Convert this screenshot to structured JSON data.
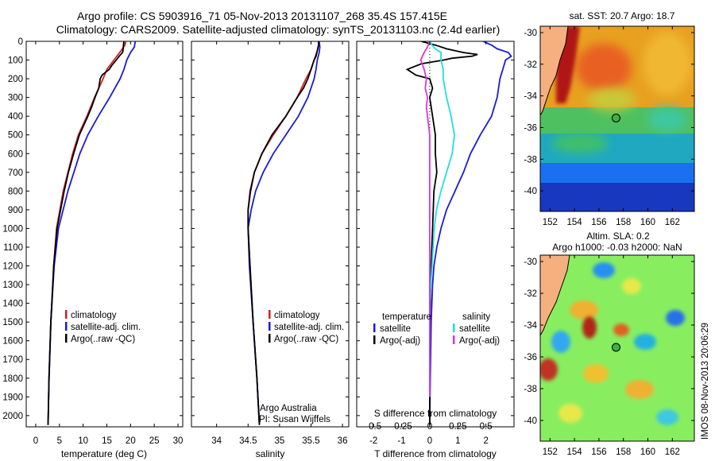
{
  "header": {
    "line1": "Argo profile: CS 5903916_71 05-Nov-2013 20131107_268 35.4S 157.415E",
    "line2": "Climatology: CARS2009. Satellite-adjusted climatology: synTS_20131103.nc (2.4d earlier)"
  },
  "credit": {
    "line1": "Argo Australia",
    "line2": "PI: Susan Wijffels"
  },
  "stamp": "IMOS 08-Nov-2013 20:06:29",
  "colors": {
    "climatology": "#d21f1f",
    "satellite": "#1a1ad8",
    "argo": "#000000",
    "salinity_satellite": "#22dde0",
    "salinity_argo": "#dd33dd",
    "land": "#f6b080"
  },
  "chart_data": [
    {
      "type": "line",
      "title": "",
      "xlabel": "temperature (deg C)",
      "ylabel": "",
      "xlim": [
        -2,
        31
      ],
      "ylim": [
        2060,
        0
      ],
      "xticks": [
        0,
        5,
        10,
        15,
        20,
        25,
        30
      ],
      "yticks": [
        0,
        100,
        200,
        300,
        400,
        500,
        600,
        700,
        800,
        900,
        1000,
        1100,
        1200,
        1300,
        1400,
        1500,
        1600,
        1700,
        1800,
        1900,
        2000
      ],
      "legend": [
        "climatology",
        "satellite-adj. clim.",
        "Argo(..raw -QC)"
      ],
      "series": [
        {
          "name": "climatology",
          "color": "#d21f1f",
          "depth": [
            0,
            20,
            50,
            100,
            150,
            200,
            300,
            400,
            500,
            600,
            800,
            1000,
            1200,
            1500,
            1800,
            2050
          ],
          "values": [
            19.0,
            18.8,
            18.0,
            16.5,
            15.0,
            14.2,
            12.4,
            10.8,
            9.0,
            7.8,
            5.8,
            4.4,
            3.8,
            3.2,
            2.8,
            2.6
          ]
        },
        {
          "name": "satellite-adj. clim.",
          "color": "#1a1ad8",
          "depth": [
            0,
            30,
            60,
            100,
            150,
            200,
            300,
            400,
            500,
            600,
            800,
            1000,
            1200,
            1500,
            1800,
            2050
          ],
          "values": [
            21.0,
            20.8,
            20.0,
            19.2,
            18.6,
            17.8,
            15.6,
            13.2,
            11.0,
            9.3,
            6.8,
            4.8,
            3.9,
            3.2,
            2.8,
            2.6
          ]
        },
        {
          "name": "Argo(..raw -QC)",
          "color": "#000000",
          "depth": [
            0,
            20,
            50,
            60,
            80,
            100,
            130,
            150,
            180,
            200,
            250,
            300,
            350,
            400,
            500,
            600,
            700,
            800,
            1000,
            1200,
            1500,
            1800,
            2050
          ],
          "values": [
            18.6,
            18.5,
            18.4,
            18.3,
            17.6,
            17.0,
            16.0,
            15.5,
            14.0,
            13.6,
            13.3,
            12.5,
            11.8,
            11.0,
            9.2,
            8.0,
            6.9,
            6.0,
            4.5,
            3.8,
            3.2,
            2.8,
            2.6
          ]
        }
      ]
    },
    {
      "type": "line",
      "title": "",
      "xlabel": "salinity",
      "ylabel": "",
      "xlim": [
        33.6,
        36.1
      ],
      "ylim": [
        2060,
        0
      ],
      "xticks": [
        34,
        34.5,
        35,
        35.5,
        36
      ],
      "xtick_labels": [
        "34",
        "34.5",
        "35",
        "35.5",
        "36"
      ],
      "legend": [
        "climatology",
        "satellite-adj. clim.",
        "Argo(..raw -QC)"
      ],
      "credit": [
        "Argo Australia",
        "PI: Susan Wijffels"
      ],
      "series": [
        {
          "name": "climatology",
          "color": "#d21f1f",
          "depth": [
            0,
            20,
            50,
            100,
            150,
            200,
            300,
            400,
            500,
            600,
            700,
            800,
            900,
            1000,
            1200,
            1500,
            1800,
            2050
          ],
          "values": [
            35.62,
            35.62,
            35.6,
            35.55,
            35.5,
            35.42,
            35.28,
            35.1,
            34.9,
            34.72,
            34.6,
            34.53,
            34.5,
            34.5,
            34.53,
            34.58,
            34.64,
            34.68
          ]
        },
        {
          "name": "satellite-adj. clim.",
          "color": "#1a1ad8",
          "depth": [
            0,
            30,
            60,
            100,
            150,
            200,
            300,
            400,
            500,
            600,
            700,
            800,
            900,
            1000,
            1200,
            1500,
            1800,
            2050
          ],
          "values": [
            35.63,
            35.64,
            35.63,
            35.6,
            35.58,
            35.55,
            35.45,
            35.3,
            35.1,
            34.9,
            34.74,
            34.62,
            34.55,
            34.5,
            34.52,
            34.58,
            34.64,
            34.68
          ]
        },
        {
          "name": "Argo(..raw -QC)",
          "color": "#000000",
          "depth": [
            0,
            20,
            50,
            80,
            100,
            150,
            200,
            250,
            300,
            400,
            500,
            600,
            700,
            800,
            900,
            1000,
            1200,
            1500,
            1800,
            2050
          ],
          "values": [
            35.62,
            35.62,
            35.6,
            35.58,
            35.55,
            35.5,
            35.45,
            35.38,
            35.28,
            35.1,
            34.88,
            34.72,
            34.6,
            34.54,
            34.5,
            34.5,
            34.53,
            34.58,
            34.64,
            34.68
          ]
        }
      ]
    },
    {
      "type": "line",
      "title": "",
      "xlabel": "T difference from climatology",
      "xlabel_top": "S difference from climatology",
      "ylabel": "",
      "xlim": [
        -2.6,
        3.0
      ],
      "ylim": [
        2060,
        0
      ],
      "xticks": [
        -2,
        -1,
        0,
        1,
        2
      ],
      "s_ticks": [
        -0.5,
        -0.25,
        0,
        0.25,
        0.5
      ],
      "s_tick_labels": [
        "-0.5",
        "-0.25",
        "0",
        "0.25",
        "0.5"
      ],
      "legend_headings": [
        "temperature",
        "salinity"
      ],
      "legend": [
        "satellite",
        "Argo(-adj)",
        "satellite",
        "Argo(-adj)"
      ],
      "series": [
        {
          "name": "temperature satellite",
          "color": "#1a1ad8",
          "depth": [
            0,
            20,
            40,
            60,
            80,
            100,
            150,
            200,
            300,
            400,
            500,
            600,
            700,
            800,
            900,
            1000,
            1100,
            1200,
            1300,
            1500,
            1800,
            2050
          ],
          "values": [
            1.9,
            2.2,
            2.4,
            2.8,
            2.9,
            2.7,
            2.6,
            2.5,
            2.4,
            2.2,
            1.8,
            1.45,
            1.2,
            0.9,
            0.6,
            0.4,
            0.25,
            0.15,
            0.1,
            0.05,
            0.02,
            0.0
          ]
        },
        {
          "name": "temperature Argo(-adj)",
          "color": "#000000",
          "depth": [
            0,
            20,
            40,
            60,
            70,
            80,
            90,
            100,
            120,
            150,
            180,
            200,
            250,
            300,
            400,
            500,
            600,
            700,
            800,
            1000,
            1200,
            1500,
            1800,
            2050
          ],
          "values": [
            -0.3,
            0.2,
            0.6,
            1.2,
            1.7,
            1.5,
            0.8,
            0.5,
            -0.3,
            -0.8,
            -0.5,
            0.0,
            0.1,
            0.0,
            0.1,
            0.2,
            0.2,
            0.25,
            0.15,
            0.1,
            0.05,
            0.0,
            0.0,
            0.0
          ]
        },
        {
          "name": "salinity satellite",
          "color": "#22dde0",
          "depth": [
            0,
            20,
            40,
            60,
            100,
            150,
            200,
            300,
            400,
            500,
            600,
            700,
            800,
            900,
            1000,
            1100,
            1200,
            1300,
            1400,
            1500,
            1900
          ],
          "values": [
            0.0,
            0.02,
            0.05,
            0.1,
            0.1,
            0.12,
            0.12,
            0.15,
            0.19,
            0.22,
            0.2,
            0.15,
            0.1,
            0.06,
            0.04,
            0.03,
            0.02,
            0.01,
            0.0,
            0.0,
            0.0
          ]
        },
        {
          "name": "salinity Argo(-adj)",
          "color": "#dd33dd",
          "depth": [
            0,
            30,
            60,
            100,
            150,
            200,
            250,
            300,
            350,
            400,
            450,
            500,
            600,
            700,
            800,
            900,
            1000,
            1200,
            1500,
            1800,
            1900
          ],
          "values": [
            0.0,
            -0.02,
            -0.05,
            -0.08,
            -0.05,
            -0.03,
            -0.04,
            -0.02,
            -0.03,
            -0.02,
            -0.01,
            0.0,
            0.0,
            0.0,
            0.0,
            0.0,
            0.0,
            0.0,
            0.0,
            0.0,
            0.0
          ]
        }
      ]
    },
    {
      "type": "heatmap",
      "title": "sat. SST: 20.7  Argo: 18.7",
      "xlim": [
        151.2,
        163.8
      ],
      "ylim": [
        -41.3,
        -29.6
      ],
      "xticks": [
        152,
        154,
        156,
        158,
        160,
        162
      ],
      "yticks": [
        -30,
        -32,
        -34,
        -36,
        -38,
        -40
      ],
      "argo_position": [
        157.4,
        -35.4
      ]
    },
    {
      "type": "heatmap",
      "title": "Altim. SLA: 0.2",
      "subtitle": "Argo h1000: -0.03 h2000: NaN",
      "xlim": [
        151.2,
        163.8
      ],
      "ylim": [
        -41.3,
        -29.6
      ],
      "xticks": [
        152,
        154,
        156,
        158,
        160,
        162
      ],
      "yticks": [
        -30,
        -32,
        -34,
        -36,
        -38,
        -40
      ],
      "argo_position": [
        157.4,
        -35.4
      ]
    }
  ]
}
